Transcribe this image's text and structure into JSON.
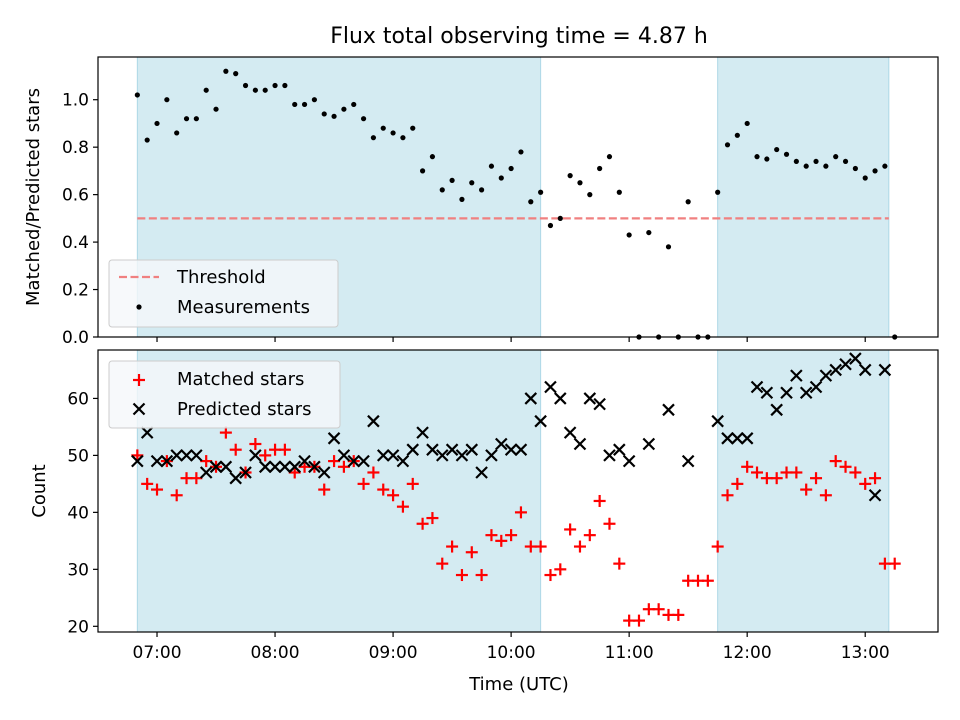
{
  "chart_data": {
    "title": "Flux total observing time = 4.87 h",
    "xlabel": "Time (UTC)",
    "x_ticks": [
      "07:00",
      "08:00",
      "09:00",
      "10:00",
      "11:00",
      "12:00",
      "13:00"
    ],
    "x_range": [
      "06:30",
      "13:37"
    ],
    "shaded_intervals": [
      [
        "06:50",
        "10:15"
      ],
      [
        "11:45",
        "13:12"
      ]
    ],
    "shade_color": "#add8e6",
    "panels": [
      {
        "type": "scatter",
        "ylabel": "Matched/Predicted stars",
        "ylim": [
          0,
          1.18
        ],
        "y_ticks": [
          "0.0",
          "0.2",
          "0.4",
          "0.6",
          "0.8",
          "1.0"
        ],
        "legend_location": "lower-left",
        "series": [
          {
            "name": "Threshold",
            "style": "dashed-line",
            "color": "#f08080",
            "x": [
              "06:50",
              "13:12"
            ],
            "y": [
              0.5,
              0.5
            ]
          },
          {
            "name": "Measurements",
            "style": "dot",
            "color": "#000000",
            "x": [
              "06:50",
              "06:55",
              "07:00",
              "07:05",
              "07:10",
              "07:15",
              "07:20",
              "07:25",
              "07:30",
              "07:35",
              "07:40",
              "07:45",
              "07:50",
              "07:55",
              "08:00",
              "08:05",
              "08:10",
              "08:15",
              "08:20",
              "08:25",
              "08:30",
              "08:35",
              "08:40",
              "08:45",
              "08:50",
              "08:55",
              "09:00",
              "09:05",
              "09:10",
              "09:15",
              "09:20",
              "09:25",
              "09:30",
              "09:35",
              "09:40",
              "09:45",
              "09:50",
              "09:55",
              "10:00",
              "10:05",
              "10:10",
              "10:15",
              "10:20",
              "10:25",
              "10:30",
              "10:35",
              "10:40",
              "10:45",
              "10:50",
              "10:55",
              "11:00",
              "11:05",
              "11:10",
              "11:15",
              "11:20",
              "11:25",
              "11:30",
              "11:35",
              "11:40",
              "11:45",
              "11:50",
              "11:55",
              "12:00",
              "12:05",
              "12:10",
              "12:15",
              "12:20",
              "12:25",
              "12:30",
              "12:35",
              "12:40",
              "12:45",
              "12:50",
              "12:55",
              "13:00",
              "13:05",
              "13:10",
              "13:15"
            ],
            "y": [
              1.02,
              0.83,
              0.9,
              1.0,
              0.86,
              0.92,
              0.92,
              1.04,
              0.96,
              1.12,
              1.11,
              1.06,
              1.04,
              1.04,
              1.06,
              1.06,
              0.98,
              0.98,
              1.0,
              0.94,
              0.93,
              0.96,
              0.98,
              0.92,
              0.84,
              0.88,
              0.86,
              0.84,
              0.88,
              0.7,
              0.76,
              0.62,
              0.66,
              0.58,
              0.65,
              0.62,
              0.72,
              0.67,
              0.71,
              0.78,
              0.57,
              0.61,
              0.47,
              0.5,
              0.68,
              0.65,
              0.6,
              0.71,
              0.76,
              0.61,
              0.43,
              0.0,
              0.44,
              0.0,
              0.38,
              0.0,
              0.57,
              0.0,
              0.0,
              0.61,
              0.81,
              0.85,
              0.9,
              0.76,
              0.75,
              0.79,
              0.77,
              0.74,
              0.72,
              0.74,
              0.72,
              0.76,
              0.74,
              0.71,
              0.67,
              0.7,
              0.72,
              0.0
            ]
          }
        ]
      },
      {
        "type": "scatter",
        "ylabel": "Count",
        "ylim": [
          19,
          68.5
        ],
        "y_ticks": [
          "20",
          "30",
          "40",
          "50",
          "60"
        ],
        "legend_location": "upper-left",
        "series": [
          {
            "name": "Matched stars",
            "style": "plus",
            "color": "#ff0000",
            "x": [
              "06:50",
              "06:55",
              "07:00",
              "07:05",
              "07:10",
              "07:15",
              "07:20",
              "07:25",
              "07:30",
              "07:35",
              "07:40",
              "07:45",
              "07:50",
              "07:55",
              "08:00",
              "08:05",
              "08:10",
              "08:15",
              "08:20",
              "08:25",
              "08:30",
              "08:35",
              "08:40",
              "08:45",
              "08:50",
              "08:55",
              "09:00",
              "09:05",
              "09:10",
              "09:15",
              "09:20",
              "09:25",
              "09:30",
              "09:35",
              "09:40",
              "09:45",
              "09:50",
              "09:55",
              "10:00",
              "10:05",
              "10:10",
              "10:15",
              "10:20",
              "10:25",
              "10:30",
              "10:35",
              "10:40",
              "10:45",
              "10:50",
              "10:55",
              "11:00",
              "11:05",
              "11:10",
              "11:15",
              "11:20",
              "11:25",
              "11:30",
              "11:35",
              "11:40",
              "11:45",
              "11:50",
              "11:55",
              "12:00",
              "12:05",
              "12:10",
              "12:15",
              "12:20",
              "12:25",
              "12:30",
              "12:35",
              "12:40",
              "12:45",
              "12:50",
              "12:55",
              "13:00",
              "13:05",
              "13:10",
              "13:15"
            ],
            "y": [
              50,
              45,
              44,
              49,
              43,
              46,
              46,
              49,
              48,
              54,
              51,
              47,
              52,
              50,
              51,
              51,
              47,
              48,
              48,
              44,
              49,
              48,
              49,
              45,
              47,
              44,
              43,
              41,
              45,
              38,
              39,
              31,
              34,
              29,
              33,
              29,
              36,
              35,
              36,
              40,
              34,
              34,
              29,
              30,
              37,
              34,
              36,
              42,
              38,
              31,
              21,
              21,
              23,
              23,
              22,
              22,
              28,
              28,
              28,
              34,
              43,
              45,
              48,
              47,
              46,
              46,
              47,
              47,
              44,
              46,
              43,
              49,
              48,
              47,
              45,
              46,
              31,
              31
            ]
          },
          {
            "name": "Predicted stars",
            "style": "x",
            "color": "#000000",
            "x": [
              "06:50",
              "06:55",
              "07:00",
              "07:05",
              "07:10",
              "07:15",
              "07:20",
              "07:25",
              "07:30",
              "07:35",
              "07:40",
              "07:45",
              "07:50",
              "07:55",
              "08:00",
              "08:05",
              "08:10",
              "08:15",
              "08:20",
              "08:25",
              "08:30",
              "08:35",
              "08:40",
              "08:45",
              "08:50",
              "08:55",
              "09:00",
              "09:05",
              "09:10",
              "09:15",
              "09:20",
              "09:25",
              "09:30",
              "09:35",
              "09:40",
              "09:45",
              "09:50",
              "09:55",
              "10:00",
              "10:05",
              "10:10",
              "10:15",
              "10:20",
              "10:25",
              "10:30",
              "10:35",
              "10:40",
              "10:45",
              "10:50",
              "10:55",
              "11:00",
              "11:10",
              "11:20",
              "11:30",
              "11:45",
              "11:50",
              "11:55",
              "12:00",
              "12:05",
              "12:10",
              "12:15",
              "12:20",
              "12:25",
              "12:30",
              "12:35",
              "12:40",
              "12:45",
              "12:50",
              "12:55",
              "13:00",
              "13:05",
              "13:10"
            ],
            "y": [
              49,
              54,
              49,
              49,
              50,
              50,
              50,
              47,
              48,
              48,
              46,
              47,
              50,
              48,
              48,
              48,
              48,
              49,
              48,
              47,
              53,
              50,
              49,
              49,
              56,
              50,
              50,
              49,
              51,
              54,
              51,
              50,
              51,
              50,
              51,
              47,
              50,
              52,
              51,
              51,
              60,
              56,
              62,
              60,
              54,
              52,
              60,
              59,
              50,
              51,
              49,
              52,
              58,
              49,
              56,
              53,
              53,
              53,
              62,
              61,
              58,
              61,
              64,
              61,
              62,
              64,
              65,
              66,
              67,
              65,
              43,
              65
            ]
          }
        ]
      }
    ]
  }
}
